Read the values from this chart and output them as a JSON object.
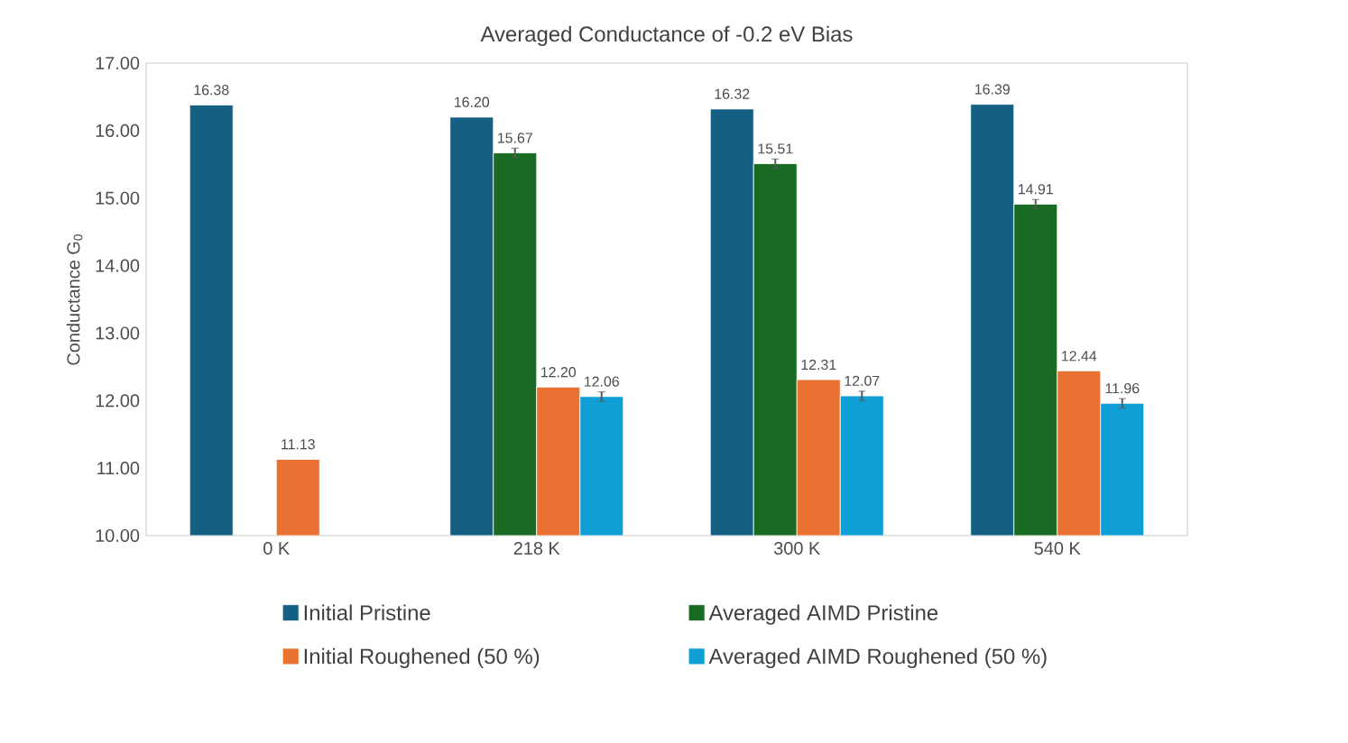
{
  "chart_data": {
    "type": "bar",
    "title": "Averaged Conductance of -0.2 eV Bias",
    "ylabel": "Conductance G$_{0}$",
    "categories": [
      "0 K",
      "218 K",
      "300 K",
      "540 K"
    ],
    "ylim": [
      10,
      17
    ],
    "yticks": [
      {
        "value": 10,
        "label": "10.00"
      },
      {
        "value": 11,
        "label": "11.00"
      },
      {
        "value": 12,
        "label": "12.00"
      },
      {
        "value": 13,
        "label": "13.00"
      },
      {
        "value": 14,
        "label": "14.00"
      },
      {
        "value": 15,
        "label": "15.00"
      },
      {
        "value": 16,
        "label": "16.00"
      },
      {
        "value": 17,
        "label": "17.00"
      }
    ],
    "legend": "bottom",
    "series": [
      {
        "name": "Initial Pristine",
        "color": "#156082",
        "values": [
          16.38,
          16.2,
          16.32,
          16.39
        ],
        "value_labels": [
          "16.38",
          "16.20",
          "16.32",
          "16.39"
        ]
      },
      {
        "name": "Averaged AIMD Pristine",
        "color": "#196b24",
        "values": [
          null,
          15.67,
          15.51,
          14.91
        ],
        "errors": [
          null,
          0.07,
          0.07,
          0.07
        ],
        "value_labels": [
          null,
          "15.67",
          "15.51",
          "14.91"
        ]
      },
      {
        "name": "Initial Roughened (50 %)",
        "color": "#e97132",
        "values": [
          11.13,
          12.2,
          12.31,
          12.44
        ],
        "value_labels": [
          "11.13",
          "12.20",
          "12.31",
          "12.44"
        ]
      },
      {
        "name": "Averaged AIMD Roughened (50 %)",
        "color": "#0f9ed5",
        "values": [
          null,
          12.06,
          12.07,
          11.96
        ],
        "errors": [
          null,
          0.07,
          0.07,
          0.07
        ],
        "value_labels": [
          null,
          "12.06",
          "12.07",
          "11.96"
        ]
      }
    ]
  }
}
